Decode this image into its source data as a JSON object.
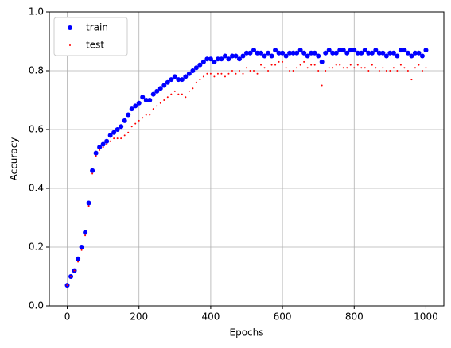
{
  "chart_data": {
    "type": "scatter",
    "xlabel": "Epochs",
    "ylabel": "Accuracy",
    "x": [
      0,
      10,
      20,
      30,
      40,
      50,
      60,
      70,
      80,
      90,
      100,
      110,
      120,
      130,
      140,
      150,
      160,
      170,
      180,
      190,
      200,
      210,
      220,
      230,
      240,
      250,
      260,
      270,
      280,
      290,
      300,
      310,
      320,
      330,
      340,
      350,
      360,
      370,
      380,
      390,
      400,
      410,
      420,
      430,
      440,
      450,
      460,
      470,
      480,
      490,
      500,
      510,
      520,
      530,
      540,
      550,
      560,
      570,
      580,
      590,
      600,
      610,
      620,
      630,
      640,
      650,
      660,
      670,
      680,
      690,
      700,
      710,
      720,
      730,
      740,
      750,
      760,
      770,
      780,
      790,
      800,
      810,
      820,
      830,
      840,
      850,
      860,
      870,
      880,
      890,
      900,
      910,
      920,
      930,
      940,
      950,
      960,
      970,
      980,
      990,
      1000
    ],
    "series": [
      {
        "name": "train",
        "color": "#0000ff",
        "values": [
          0.07,
          0.1,
          0.12,
          0.16,
          0.2,
          0.25,
          0.35,
          0.46,
          0.52,
          0.54,
          0.55,
          0.56,
          0.58,
          0.59,
          0.6,
          0.61,
          0.63,
          0.65,
          0.67,
          0.68,
          0.69,
          0.71,
          0.7,
          0.7,
          0.72,
          0.73,
          0.74,
          0.75,
          0.76,
          0.77,
          0.78,
          0.77,
          0.77,
          0.78,
          0.79,
          0.8,
          0.81,
          0.82,
          0.83,
          0.84,
          0.84,
          0.83,
          0.84,
          0.84,
          0.85,
          0.84,
          0.85,
          0.85,
          0.84,
          0.85,
          0.86,
          0.86,
          0.87,
          0.86,
          0.86,
          0.85,
          0.86,
          0.85,
          0.87,
          0.86,
          0.86,
          0.85,
          0.86,
          0.86,
          0.86,
          0.87,
          0.86,
          0.85,
          0.86,
          0.86,
          0.85,
          0.83,
          0.86,
          0.87,
          0.86,
          0.86,
          0.87,
          0.87,
          0.86,
          0.87,
          0.87,
          0.86,
          0.86,
          0.87,
          0.86,
          0.86,
          0.87,
          0.86,
          0.86,
          0.85,
          0.86,
          0.86,
          0.85,
          0.87,
          0.87,
          0.86,
          0.85,
          0.86,
          0.86,
          0.85,
          0.87
        ]
      },
      {
        "name": "test",
        "color": "#ff0000",
        "values": [
          0.07,
          0.1,
          0.12,
          0.15,
          0.19,
          0.24,
          0.34,
          0.45,
          0.51,
          0.53,
          0.54,
          0.55,
          0.56,
          0.57,
          0.57,
          0.57,
          0.58,
          0.59,
          0.61,
          0.62,
          0.63,
          0.64,
          0.65,
          0.65,
          0.67,
          0.68,
          0.69,
          0.7,
          0.71,
          0.72,
          0.73,
          0.72,
          0.72,
          0.71,
          0.73,
          0.74,
          0.76,
          0.77,
          0.78,
          0.79,
          0.79,
          0.78,
          0.79,
          0.79,
          0.78,
          0.79,
          0.8,
          0.79,
          0.8,
          0.79,
          0.81,
          0.8,
          0.8,
          0.79,
          0.82,
          0.81,
          0.8,
          0.82,
          0.82,
          0.83,
          0.83,
          0.81,
          0.8,
          0.8,
          0.81,
          0.82,
          0.83,
          0.81,
          0.82,
          0.82,
          0.8,
          0.75,
          0.8,
          0.81,
          0.81,
          0.82,
          0.82,
          0.81,
          0.81,
          0.82,
          0.81,
          0.82,
          0.81,
          0.81,
          0.8,
          0.82,
          0.81,
          0.8,
          0.81,
          0.8,
          0.8,
          0.81,
          0.8,
          0.82,
          0.81,
          0.8,
          0.77,
          0.81,
          0.82,
          0.8,
          0.81
        ]
      }
    ],
    "xlim": [
      -50,
      1050
    ],
    "ylim": [
      0,
      1
    ],
    "xticks": [
      0,
      200,
      400,
      600,
      800,
      1000
    ],
    "yticks": [
      {
        "value": 0,
        "label": "0.0"
      },
      0.2,
      0.4,
      0.6,
      0.8,
      {
        "value": 1,
        "label": "1.0"
      }
    ],
    "grid": true,
    "legend": "upper left"
  }
}
